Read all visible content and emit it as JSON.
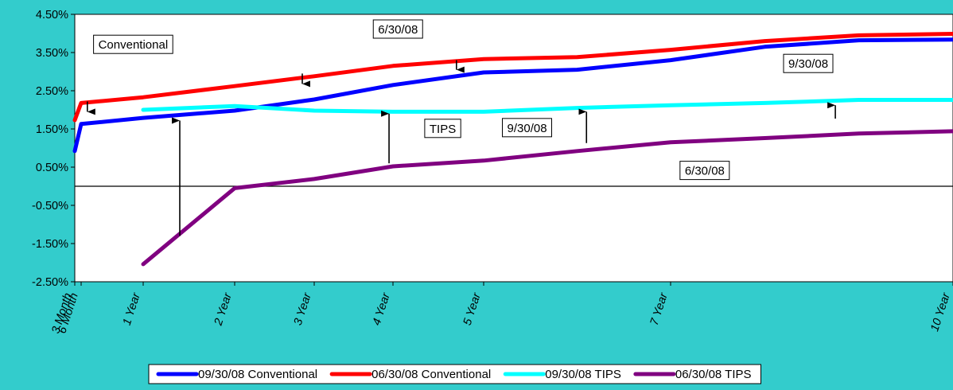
{
  "chart_data": {
    "type": "line",
    "title": "",
    "xlabel": "",
    "ylabel": "",
    "x_categories": [
      "3 Month",
      "6 Month",
      "1 Year",
      "2 Year",
      "3 Year",
      "4 Year",
      "5 Year",
      "7 Year",
      "10 Year"
    ],
    "x_years": [
      0.25,
      0.5,
      1,
      2,
      3,
      4,
      5,
      7,
      10
    ],
    "ylim": [
      -2.5,
      4.5
    ],
    "y_ticks": [
      4.5,
      3.5,
      2.5,
      1.5,
      0.5,
      -0.5,
      -1.5,
      -2.5
    ],
    "y_tick_labels": [
      "4.50%",
      "3.50%",
      "2.50%",
      "1.50%",
      "0.50%",
      "-0.50%",
      "-1.50%",
      "-2.50%"
    ],
    "series": [
      {
        "name": "09/30/08 Conventional",
        "color": "#0000FF",
        "x": [
          0.25,
          0.5,
          1,
          2,
          3,
          4,
          5,
          6,
          7,
          8,
          9,
          10
        ],
        "y": [
          0.92,
          1.63,
          1.79,
          1.98,
          2.27,
          2.65,
          2.98,
          3.05,
          3.3,
          3.65,
          3.82,
          3.84
        ]
      },
      {
        "name": "06/30/08 Conventional",
        "color": "#FF0000",
        "x": [
          0.25,
          0.5,
          1,
          2,
          3,
          4,
          5,
          6,
          7,
          8,
          9,
          10
        ],
        "y": [
          1.73,
          2.18,
          2.33,
          2.62,
          2.88,
          3.15,
          3.33,
          3.38,
          3.57,
          3.8,
          3.95,
          3.99
        ]
      },
      {
        "name": "09/30/08 TIPS",
        "color": "#00FFFF",
        "x": [
          1,
          2,
          3,
          4,
          5,
          6,
          7,
          8,
          9,
          10
        ],
        "y": [
          2.0,
          2.1,
          1.98,
          1.95,
          1.95,
          2.05,
          2.12,
          2.18,
          2.26,
          2.26
        ]
      },
      {
        "name": "06/30/08 TIPS",
        "color": "#800080",
        "x": [
          1,
          2,
          3,
          4,
          5,
          6,
          7,
          8,
          9,
          10
        ],
        "y": [
          -2.04,
          -0.05,
          0.19,
          0.52,
          0.67,
          0.92,
          1.15,
          1.26,
          1.38,
          1.44
        ]
      }
    ],
    "annotations": [
      {
        "text": "Conventional",
        "x": 0.6,
        "y": 3.6
      },
      {
        "text": "6/30/08",
        "x": 3.75,
        "y": 4.0
      },
      {
        "text": "9/30/08",
        "x": 8.2,
        "y": 3.1
      },
      {
        "text": "TIPS",
        "x": 4.35,
        "y": 1.4
      },
      {
        "text": "9/30/08",
        "x": 5.2,
        "y": 1.42
      },
      {
        "text": "6/30/08",
        "x": 7.1,
        "y": 0.3
      }
    ],
    "arrows": [
      {
        "x": 0.55,
        "y_from": 2.22,
        "y_to": 1.95
      },
      {
        "x": 2.85,
        "y_from": 2.95,
        "y_to": 2.68
      },
      {
        "x": 4.7,
        "y_from": 3.3,
        "y_to": 3.05
      },
      {
        "x": 1.4,
        "y_from": -1.3,
        "y_to": 1.72
      },
      {
        "x": 3.95,
        "y_from": 0.6,
        "y_to": 1.9
      },
      {
        "x": 6.1,
        "y_from": 1.13,
        "y_to": 1.95
      },
      {
        "x": 8.75,
        "y_from": 1.77,
        "y_to": 2.12
      }
    ],
    "zero_line": 0,
    "grid": false,
    "legend_position": "bottom"
  }
}
